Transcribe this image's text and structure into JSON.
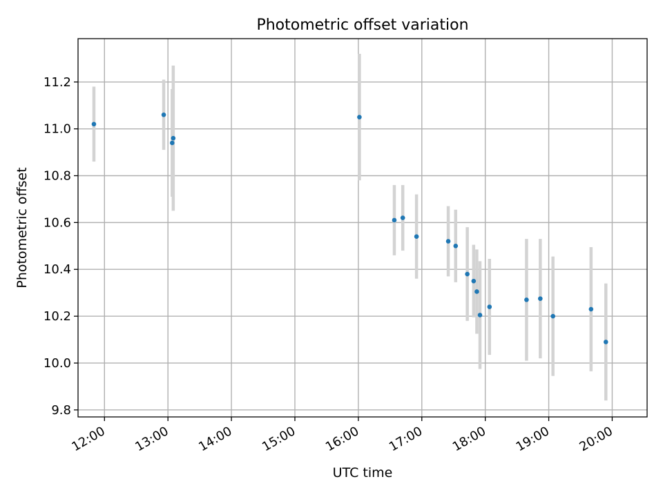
{
  "chart_data": {
    "type": "scatter",
    "title": "Photometric offset variation",
    "xlabel": "UTC time",
    "ylabel": "Photometric offset",
    "x_ticks": [
      "12:00",
      "13:00",
      "14:00",
      "15:00",
      "16:00",
      "17:00",
      "18:00",
      "19:00",
      "20:00"
    ],
    "y_ticks": [
      "9.8",
      "10.0",
      "10.2",
      "10.4",
      "10.6",
      "10.8",
      "11.0",
      "11.2"
    ],
    "y_tick_values": [
      9.8,
      10.0,
      10.2,
      10.4,
      10.6,
      10.8,
      11.0,
      11.2
    ],
    "xlim": [
      "11:35",
      "20:33"
    ],
    "ylim": [
      9.77,
      11.385
    ],
    "grid": true,
    "marker_color": "#1f77b4",
    "error_color": "#d3d3d3",
    "series": [
      {
        "points": [
          {
            "x": "11:50",
            "y": 11.02,
            "err": 0.16
          },
          {
            "x": "12:56",
            "y": 11.06,
            "err": 0.15
          },
          {
            "x": "13:04",
            "y": 10.94,
            "err": 0.23
          },
          {
            "x": "13:05",
            "y": 10.96,
            "err": 0.31
          },
          {
            "x": "16:01",
            "y": 11.05,
            "err": 0.27
          },
          {
            "x": "16:34",
            "y": 10.61,
            "err": 0.15
          },
          {
            "x": "16:42",
            "y": 10.62,
            "err": 0.14
          },
          {
            "x": "16:55",
            "y": 10.54,
            "err": 0.18
          },
          {
            "x": "17:25",
            "y": 10.52,
            "err": 0.15
          },
          {
            "x": "17:32",
            "y": 10.5,
            "err": 0.155
          },
          {
            "x": "17:43",
            "y": 10.38,
            "err": 0.2
          },
          {
            "x": "17:49",
            "y": 10.35,
            "err": 0.155
          },
          {
            "x": "17:52",
            "y": 10.305,
            "err": 0.18
          },
          {
            "x": "17:55",
            "y": 10.205,
            "err": 0.23
          },
          {
            "x": "18:04",
            "y": 10.24,
            "err": 0.205
          },
          {
            "x": "18:39",
            "y": 10.27,
            "err": 0.26
          },
          {
            "x": "18:52",
            "y": 10.275,
            "err": 0.255
          },
          {
            "x": "19:04",
            "y": 10.2,
            "err": 0.255
          },
          {
            "x": "19:40",
            "y": 10.23,
            "err": 0.265
          },
          {
            "x": "19:54",
            "y": 10.09,
            "err": 0.25
          }
        ]
      }
    ]
  }
}
